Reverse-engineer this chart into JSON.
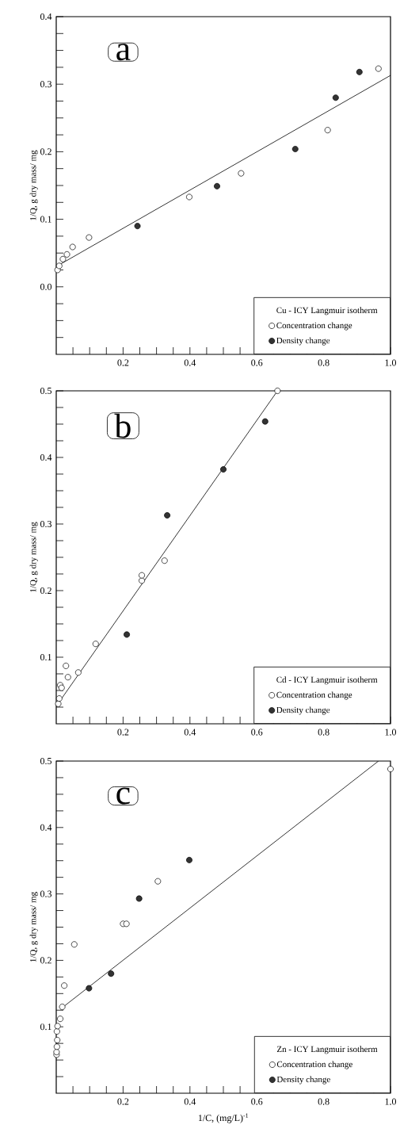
{
  "chart_data": [
    {
      "type": "scatter",
      "annotations": [
        "a"
      ],
      "ylabel": "1/Q,  g dry mass/ mg",
      "legend_title": "Cu - ICY Langmuir isotherm",
      "legend": "bottom right",
      "xlim": [
        0,
        1
      ],
      "ylim": [
        -0.1,
        0.4
      ],
      "xticks": [
        {
          "value": 0.05,
          "label": null
        },
        {
          "value": 0.1,
          "label": null
        },
        {
          "value": 0.15,
          "label": null
        },
        0.2,
        {
          "value": 0.25,
          "label": null
        },
        {
          "value": 0.3,
          "label": null
        },
        {
          "value": 0.35,
          "label": null
        },
        0.4,
        {
          "value": 0.45,
          "label": null
        },
        {
          "value": 0.5,
          "label": null
        },
        {
          "value": 0.55,
          "label": null
        },
        0.6,
        {
          "value": 0.65,
          "label": null
        },
        {
          "value": 0.7,
          "label": null
        },
        {
          "value": 0.75,
          "label": null
        },
        0.8,
        {
          "value": 0.85,
          "label": null
        },
        {
          "value": 0.9,
          "label": null
        },
        {
          "value": 0.95,
          "label": null
        },
        {
          "value": 1,
          "label": "1.0"
        }
      ],
      "yticks": [
        {
          "value": -0.075,
          "label": null
        },
        {
          "value": -0.05,
          "label": null
        },
        {
          "value": -0.025,
          "label": null
        },
        {
          "value": 0,
          "label": "0.0"
        },
        {
          "value": 0.025,
          "label": null
        },
        {
          "value": 0.05,
          "label": null
        },
        {
          "value": 0.075,
          "label": null
        },
        0.1,
        {
          "value": 0.125,
          "label": null
        },
        {
          "value": 0.15,
          "label": null
        },
        {
          "value": 0.175,
          "label": null
        },
        0.2,
        {
          "value": 0.225,
          "label": null
        },
        {
          "value": 0.25,
          "label": null
        },
        {
          "value": 0.275,
          "label": null
        },
        0.3,
        {
          "value": 0.325,
          "label": null
        },
        {
          "value": 0.35,
          "label": null
        },
        {
          "value": 0.375,
          "label": null
        },
        0.4
      ],
      "series": [
        {
          "type": "line",
          "marker": "none",
          "color": "#000000",
          "x": [
            0,
            1
          ],
          "values": [
            0.03,
            0.313
          ]
        },
        {
          "name": "Concentration change",
          "marker": "circle",
          "color": "#ffffff",
          "x": [
            0.004,
            0.009,
            0.02,
            0.032,
            0.049,
            0.098,
            0.398,
            0.553,
            0.812,
            0.964
          ],
          "values": [
            0.025,
            0.031,
            0.041,
            0.048,
            0.059,
            0.073,
            0.133,
            0.168,
            0.232,
            0.323
          ]
        },
        {
          "name": "Density change",
          "marker": "circle",
          "color": "#333333",
          "x": [
            0.243,
            0.481,
            0.715,
            0.836,
            0.907
          ],
          "values": [
            0.09,
            0.149,
            0.204,
            0.28,
            0.318
          ]
        }
      ]
    },
    {
      "type": "scatter",
      "annotations": [
        "b"
      ],
      "ylabel": "1/Q,  g dry mass/ mg",
      "legend_title": "Cd - ICY Langmuir isotherm",
      "legend": "bottom right",
      "xlim": [
        0,
        1
      ],
      "ylim": [
        0,
        0.5
      ],
      "xticks": [
        {
          "value": 0.05,
          "label": null
        },
        {
          "value": 0.1,
          "label": null
        },
        {
          "value": 0.15,
          "label": null
        },
        0.2,
        {
          "value": 0.25,
          "label": null
        },
        {
          "value": 0.3,
          "label": null
        },
        {
          "value": 0.35,
          "label": null
        },
        0.4,
        {
          "value": 0.45,
          "label": null
        },
        {
          "value": 0.5,
          "label": null
        },
        {
          "value": 0.55,
          "label": null
        },
        0.6,
        {
          "value": 0.65,
          "label": null
        },
        {
          "value": 0.7,
          "label": null
        },
        {
          "value": 0.75,
          "label": null
        },
        0.8,
        {
          "value": 0.85,
          "label": null
        },
        {
          "value": 0.9,
          "label": null
        },
        {
          "value": 0.95,
          "label": null
        },
        {
          "value": 1,
          "label": "1.0"
        }
      ],
      "yticks": [
        {
          "value": 0.025,
          "label": null
        },
        {
          "value": 0.05,
          "label": null
        },
        {
          "value": 0.075,
          "label": null
        },
        0.1,
        {
          "value": 0.125,
          "label": null
        },
        {
          "value": 0.15,
          "label": null
        },
        {
          "value": 0.175,
          "label": null
        },
        0.2,
        {
          "value": 0.225,
          "label": null
        },
        {
          "value": 0.25,
          "label": null
        },
        {
          "value": 0.275,
          "label": null
        },
        0.3,
        {
          "value": 0.325,
          "label": null
        },
        {
          "value": 0.35,
          "label": null
        },
        {
          "value": 0.375,
          "label": null
        },
        0.4,
        {
          "value": 0.425,
          "label": null
        },
        {
          "value": 0.45,
          "label": null
        },
        {
          "value": 0.475,
          "label": null
        },
        0.5
      ],
      "series": [
        {
          "type": "line",
          "marker": "none",
          "color": "#000000",
          "x": [
            0.005,
            0.662
          ],
          "values": [
            0.03,
            0.5
          ]
        },
        {
          "name": "Concentration change",
          "marker": "circle",
          "color": "#ffffff",
          "x": [
            0.006,
            0.009,
            0.012,
            0.016,
            0.029,
            0.035,
            0.066,
            0.118,
            0.256,
            0.256,
            0.324,
            0.662
          ],
          "values": [
            0.03,
            0.038,
            0.058,
            0.054,
            0.087,
            0.07,
            0.077,
            0.12,
            0.215,
            0.223,
            0.245,
            0.5
          ]
        },
        {
          "name": "Density change",
          "marker": "circle",
          "color": "#333333",
          "x": [
            0.211,
            0.332,
            0.5,
            0.625
          ],
          "values": [
            0.134,
            0.313,
            0.382,
            0.454
          ]
        }
      ]
    },
    {
      "type": "scatter",
      "annotations": [
        "c"
      ],
      "ylabel": "1/Q,  g dry mass/ mg",
      "xlabel": "1/C,  (mg/L)$^{-1}$",
      "legend_title": "Zn - ICY Langmuir isotherm",
      "legend": "bottom right",
      "xlim": [
        0,
        1
      ],
      "ylim": [
        0,
        0.5
      ],
      "xticks": [
        {
          "value": 0.05,
          "label": null
        },
        {
          "value": 0.1,
          "label": null
        },
        {
          "value": 0.15,
          "label": null
        },
        0.2,
        {
          "value": 0.25,
          "label": null
        },
        {
          "value": 0.3,
          "label": null
        },
        {
          "value": 0.35,
          "label": null
        },
        0.4,
        {
          "value": 0.45,
          "label": null
        },
        {
          "value": 0.5,
          "label": null
        },
        {
          "value": 0.55,
          "label": null
        },
        0.6,
        {
          "value": 0.65,
          "label": null
        },
        {
          "value": 0.7,
          "label": null
        },
        {
          "value": 0.75,
          "label": null
        },
        0.8,
        {
          "value": 0.85,
          "label": null
        },
        {
          "value": 0.9,
          "label": null
        },
        {
          "value": 0.95,
          "label": null
        },
        {
          "value": 1,
          "label": "1.0"
        }
      ],
      "yticks": [
        {
          "value": 0.025,
          "label": null
        },
        {
          "value": 0.05,
          "label": null
        },
        {
          "value": 0.075,
          "label": null
        },
        0.1,
        {
          "value": 0.125,
          "label": null
        },
        {
          "value": 0.15,
          "label": null
        },
        {
          "value": 0.175,
          "label": null
        },
        0.2,
        {
          "value": 0.225,
          "label": null
        },
        {
          "value": 0.25,
          "label": null
        },
        {
          "value": 0.275,
          "label": null
        },
        0.3,
        {
          "value": 0.325,
          "label": null
        },
        {
          "value": 0.35,
          "label": null
        },
        {
          "value": 0.375,
          "label": null
        },
        0.4,
        {
          "value": 0.425,
          "label": null
        },
        {
          "value": 0.45,
          "label": null
        },
        {
          "value": 0.475,
          "label": null
        },
        0.5
      ],
      "series": [
        {
          "type": "line",
          "marker": "none",
          "color": "#000000",
          "x": [
            0.016,
            0.964
          ],
          "values": [
            0.128,
            0.5
          ]
        },
        {
          "name": "Concentration change",
          "marker": "circle",
          "color": "#ffffff",
          "x": [
            0.001,
            0.001,
            0.002,
            0.003,
            0.002,
            0.004,
            0.012,
            0.018,
            0.024,
            0.054,
            0.2,
            0.21,
            0.304,
            1.0
          ],
          "values": [
            0.058,
            0.062,
            0.07,
            0.08,
            0.093,
            0.101,
            0.112,
            0.13,
            0.162,
            0.224,
            0.255,
            0.255,
            0.319,
            0.488
          ]
        },
        {
          "name": "Density change",
          "marker": "circle",
          "color": "#333333",
          "x": [
            0.098,
            0.164,
            0.248,
            0.398
          ],
          "values": [
            0.158,
            0.18,
            0.293,
            0.351
          ]
        }
      ]
    }
  ]
}
